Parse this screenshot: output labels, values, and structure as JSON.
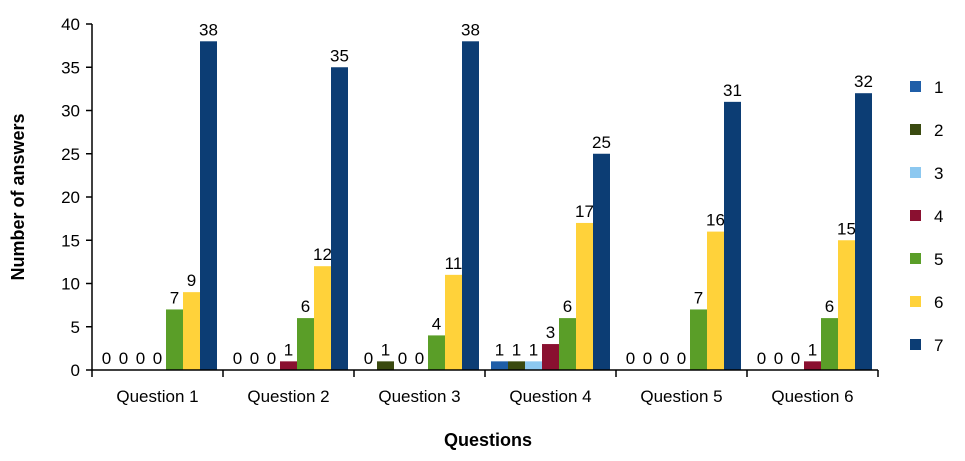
{
  "chart_data": {
    "type": "bar",
    "title": "",
    "xlabel": "Questions",
    "ylabel": "Number of answers",
    "ylim": [
      0,
      40
    ],
    "yticks": [
      0,
      5,
      10,
      15,
      20,
      25,
      30,
      35,
      40
    ],
    "grid": false,
    "legend_position": "right",
    "categories": [
      "Question 1",
      "Question 2",
      "Question 3",
      "Question 4",
      "Question 5",
      "Question 6"
    ],
    "series": [
      {
        "name": "1",
        "color": "#1f5ea8",
        "values": [
          0,
          0,
          0,
          1,
          0,
          0
        ]
      },
      {
        "name": "2",
        "color": "#3a4a10",
        "values": [
          0,
          0,
          1,
          1,
          0,
          0
        ]
      },
      {
        "name": "3",
        "color": "#8cc8f0",
        "values": [
          0,
          0,
          0,
          1,
          0,
          0
        ]
      },
      {
        "name": "4",
        "color": "#8a1030",
        "values": [
          0,
          1,
          0,
          3,
          0,
          1
        ]
      },
      {
        "name": "5",
        "color": "#5a9e28",
        "values": [
          7,
          6,
          4,
          6,
          7,
          6
        ]
      },
      {
        "name": "6",
        "color": "#ffd23a",
        "values": [
          9,
          12,
          11,
          17,
          16,
          15
        ]
      },
      {
        "name": "7",
        "color": "#0c3d74",
        "values": [
          38,
          35,
          38,
          25,
          31,
          32
        ]
      }
    ]
  }
}
